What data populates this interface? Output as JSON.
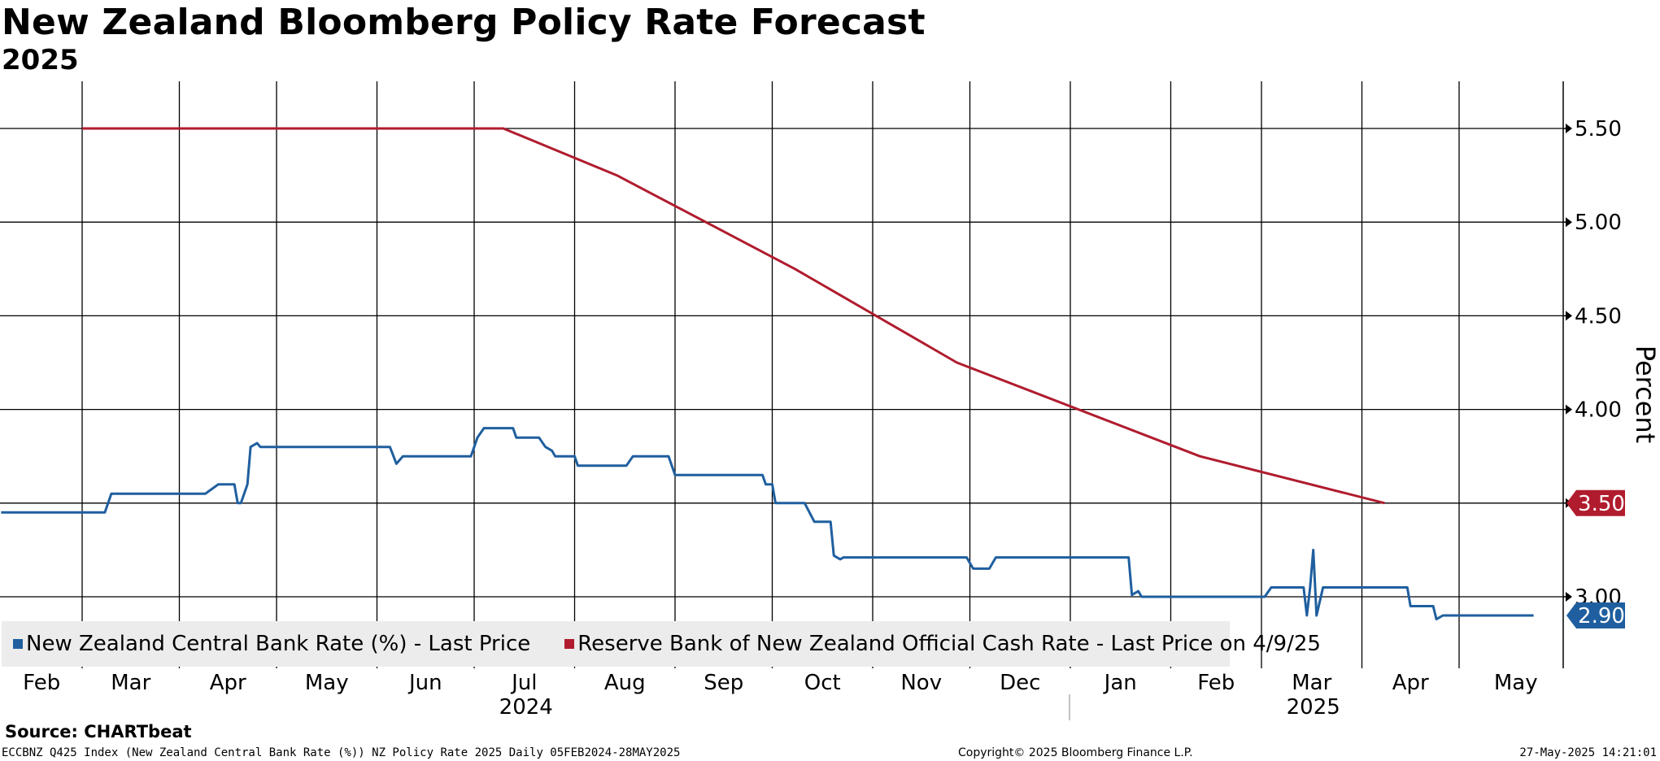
{
  "header": {
    "title": "New Zealand Bloomberg Policy Rate Forecast",
    "subtitle": "2025"
  },
  "chart_data": {
    "type": "line",
    "ylabel": "Percent",
    "ylim": [
      2.62,
      5.75
    ],
    "y_ticks": [
      {
        "value": 3.0,
        "label": "3.00"
      },
      {
        "value": 3.5,
        "label": "3.50"
      },
      {
        "value": 4.0,
        "label": "4.00"
      },
      {
        "value": 4.5,
        "label": "4.50"
      },
      {
        "value": 5.0,
        "label": "5.00"
      },
      {
        "value": 5.5,
        "label": "5.50"
      }
    ],
    "x_range_days": [
      0,
      485
    ],
    "x_ticks": [
      {
        "label": "Feb",
        "day": 0
      },
      {
        "label": "Mar",
        "day": 25
      },
      {
        "label": "Apr",
        "day": 55
      },
      {
        "label": "May",
        "day": 85
      },
      {
        "label": "Jun",
        "day": 116
      },
      {
        "label": "Jul",
        "day": 146
      },
      {
        "label": "Aug",
        "day": 177
      },
      {
        "label": "Sep",
        "day": 208
      },
      {
        "label": "Oct",
        "day": 238
      },
      {
        "label": "Nov",
        "day": 269
      },
      {
        "label": "Dec",
        "day": 299
      },
      {
        "label": "Jan",
        "day": 330
      },
      {
        "label": "Feb",
        "day": 361
      },
      {
        "label": "Mar",
        "day": 389
      },
      {
        "label": "Apr",
        "day": 420
      },
      {
        "label": "May",
        "day": 450
      }
    ],
    "year_labels": [
      {
        "label": "2024",
        "day": 162
      },
      {
        "label": "2025",
        "day": 405
      }
    ],
    "year_divider_day": 330,
    "series": [
      {
        "name": "New Zealand Central Bank Rate (%) - Last Price",
        "color": "#1f5f9f",
        "last_label": "2.90",
        "points": [
          [
            0,
            3.45
          ],
          [
            32,
            3.45
          ],
          [
            34,
            3.55
          ],
          [
            63,
            3.55
          ],
          [
            67,
            3.6
          ],
          [
            72,
            3.6
          ],
          [
            73,
            3.5
          ],
          [
            74,
            3.5
          ],
          [
            76,
            3.6
          ],
          [
            77,
            3.8
          ],
          [
            79,
            3.82
          ],
          [
            80,
            3.8
          ],
          [
            120,
            3.8
          ],
          [
            122,
            3.71
          ],
          [
            124,
            3.75
          ],
          [
            145,
            3.75
          ],
          [
            147,
            3.85
          ],
          [
            149,
            3.9
          ],
          [
            158,
            3.9
          ],
          [
            159,
            3.85
          ],
          [
            166,
            3.85
          ],
          [
            168,
            3.8
          ],
          [
            170,
            3.78
          ],
          [
            171,
            3.75
          ],
          [
            177,
            3.75
          ],
          [
            178,
            3.7
          ],
          [
            193,
            3.7
          ],
          [
            195,
            3.75
          ],
          [
            206,
            3.75
          ],
          [
            208,
            3.65
          ],
          [
            235,
            3.65
          ],
          [
            236,
            3.6
          ],
          [
            238,
            3.6
          ],
          [
            239,
            3.5
          ],
          [
            248,
            3.5
          ],
          [
            251,
            3.4
          ],
          [
            256,
            3.4
          ],
          [
            257,
            3.22
          ],
          [
            259,
            3.2
          ],
          [
            260,
            3.21
          ],
          [
            298,
            3.21
          ],
          [
            300,
            3.15
          ],
          [
            305,
            3.15
          ],
          [
            307,
            3.21
          ],
          [
            348,
            3.21
          ],
          [
            349,
            3.01
          ],
          [
            351,
            3.03
          ],
          [
            352,
            3.0
          ],
          [
            390,
            3.0
          ],
          [
            392,
            3.05
          ],
          [
            402,
            3.05
          ],
          [
            403,
            2.9
          ],
          [
            404,
            3.05
          ],
          [
            405,
            3.25
          ],
          [
            406,
            2.9
          ],
          [
            408,
            3.05
          ],
          [
            434,
            3.05
          ],
          [
            435,
            2.95
          ],
          [
            442,
            2.95
          ],
          [
            443,
            2.88
          ],
          [
            445,
            2.9
          ],
          [
            473,
            2.9
          ]
        ]
      },
      {
        "name": "Reserve Bank of New Zealand Official Cash Rate - Last Price on 4/9/25",
        "color": "#b01c2e",
        "last_label": "3.50",
        "points": [
          [
            25,
            5.5
          ],
          [
            155,
            5.5
          ],
          [
            190,
            5.25
          ],
          [
            245,
            4.75
          ],
          [
            295,
            4.25
          ],
          [
            370,
            3.75
          ],
          [
            427,
            3.5
          ]
        ]
      }
    ]
  },
  "source": "Source: CHARTbeat",
  "footer": {
    "left": "ECCBNZ Q425 Index (New Zealand Central Bank Rate (%)) NZ Policy Rate 2025  Daily 05FEB2024-28MAY2025",
    "mid": "Copyright© 2025 Bloomberg Finance L.P.",
    "right": "27-May-2025 14:21:01"
  }
}
